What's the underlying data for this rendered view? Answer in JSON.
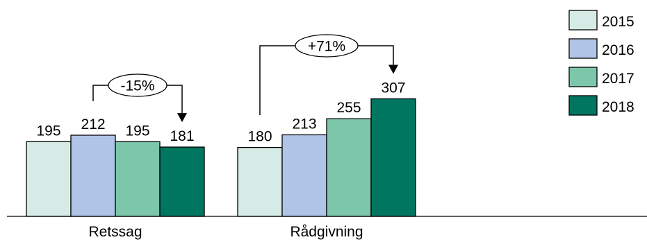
{
  "chart_data": {
    "type": "bar",
    "categories": [
      "Retssag",
      "Rådgivning"
    ],
    "series": [
      {
        "name": "2015",
        "values": [
          195,
          180
        ]
      },
      {
        "name": "2016",
        "values": [
          212,
          213
        ]
      },
      {
        "name": "2017",
        "values": [
          195,
          255
        ]
      },
      {
        "name": "2018",
        "values": [
          181,
          307
        ]
      }
    ],
    "annotations": [
      {
        "category": "Retssag",
        "text": "-15%",
        "from_series": "2016",
        "to_series": "2018"
      },
      {
        "category": "Rådgivning",
        "text": "+71%",
        "from_series": "2015",
        "to_series": "2018"
      }
    ],
    "legend_position": "top-right",
    "colors": [
      "#d6ebe6",
      "#afc4e6",
      "#7cc6aa",
      "#007660"
    ],
    "grid": false
  }
}
